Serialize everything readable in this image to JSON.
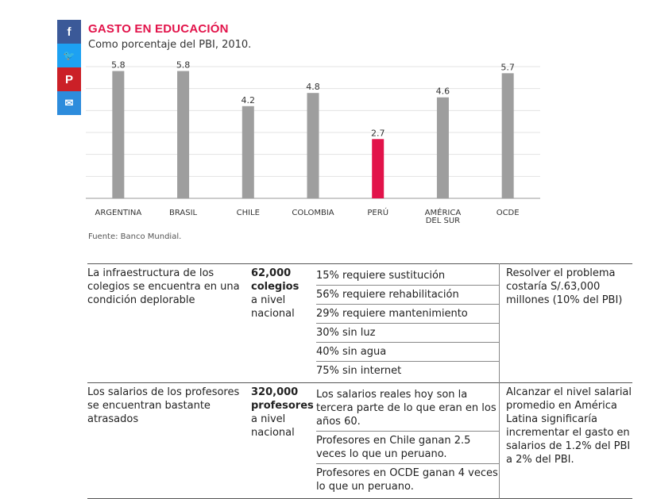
{
  "share": [
    {
      "icon": "facebook-icon",
      "glyph": "f",
      "color": "#3b5998"
    },
    {
      "icon": "twitter-icon",
      "glyph": "🐦",
      "color": "#1da1f2"
    },
    {
      "icon": "pinterest-icon",
      "glyph": "P",
      "color": "#cb2027"
    },
    {
      "icon": "email-icon",
      "glyph": "✉",
      "color": "#2d8cdc"
    }
  ],
  "title": "GASTO EN EDUCACIÓN",
  "subtitle": "Como porcentaje del PBI, 2010.",
  "source": "Fuente: Banco Mundial.",
  "chart_data": {
    "type": "bar",
    "categories": [
      [
        "ARGENTINA"
      ],
      [
        "BRASIL"
      ],
      [
        "CHILE"
      ],
      [
        "COLOMBIA"
      ],
      [
        "PERÚ"
      ],
      [
        "AMÉRICA",
        "DEL SUR"
      ],
      [
        "OCDE"
      ]
    ],
    "values": [
      5.8,
      5.8,
      4.2,
      4.8,
      2.7,
      4.6,
      5.7
    ],
    "value_labels": [
      "5.8",
      "5.8",
      "4.2",
      "4.8",
      "2.7",
      "4.6",
      "5.7"
    ],
    "colors": [
      "#9e9e9e",
      "#9e9e9e",
      "#9e9e9e",
      "#9e9e9e",
      "#e2134a",
      "#9e9e9e",
      "#9e9e9e"
    ],
    "ylim": [
      0,
      6
    ],
    "grid": true,
    "title": "GASTO EN EDUCACIÓN",
    "xlabel": "",
    "ylabel": ""
  },
  "table": {
    "rows": [
      {
        "desc": "La infraestructura de los colegios se encuentra en una condición deplorable",
        "count_bold": "62,000 colegios",
        "count_rest": "a nivel nacional",
        "details": [
          "15% requiere sustitución",
          "56% requiere rehabilitación",
          "29% requiere mantenimiento",
          "30% sin luz",
          "40% sin agua",
          "75% sin internet"
        ],
        "solution": "Resolver el problema costaría S/.63,000 millones (10% del PBI)"
      },
      {
        "desc": "Los salarios de los profesores se encuentran bastante atrasados",
        "count_bold": "320,000 profesores",
        "count_rest": "a nivel nacional",
        "details": [
          "Los salarios reales hoy son la tercera parte de lo que eran en los años 60.",
          "Profesores en Chile ganan 2.5 veces lo que un peruano.",
          "Profesores en OCDE ganan 4 veces lo que un peruano."
        ],
        "solution": "Alcanzar el nivel salarial promedio en América Latina significaría incrementar el gasto en salarios de 1.2% del PBI a 2% del PBI."
      }
    ]
  }
}
